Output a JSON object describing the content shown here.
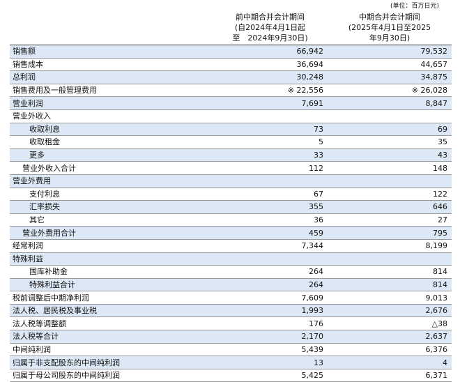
{
  "unit": "(单位：百万日元)",
  "header": {
    "prev": [
      "前中期合并会计期间",
      "(自2024年4月1日起",
      "至　2024年9月30日)"
    ],
    "curr": [
      "中期合并会计期间",
      "(2025年4月1日至2025",
      "年9月30日)"
    ]
  },
  "table": {
    "rows": [
      [
        "销售额",
        "66,942",
        "79,532"
      ],
      [
        "销售成本",
        "36,694",
        "44,657"
      ],
      [
        "总利润",
        "30,248",
        "34,875"
      ],
      [
        "销售费用及一般管理费用",
        "※ 22,556",
        "※ 26,028"
      ],
      [
        "营业利润",
        "7,691",
        "8,847"
      ],
      [
        "营业外收入",
        "",
        ""
      ],
      [
        "收取利息",
        "73",
        "69"
      ],
      [
        "收取租金",
        "5",
        "35"
      ],
      [
        "更多",
        "33",
        "43"
      ],
      [
        "营业外收入合计",
        "112",
        "148"
      ],
      [
        "营业外费用",
        "",
        ""
      ],
      [
        "支付利息",
        "67",
        "122"
      ],
      [
        "汇率损失",
        "355",
        "646"
      ],
      [
        "其它",
        "36",
        "27"
      ],
      [
        "营业外费用合计",
        "459",
        "795"
      ],
      [
        "经常利润",
        "7,344",
        "8,199"
      ],
      [
        "特殊利益",
        "",
        ""
      ],
      [
        "国库补助金",
        "264",
        "814"
      ],
      [
        "特殊利益合计",
        "264",
        "814"
      ],
      [
        "税前调整后中期净利润",
        "7,609",
        "9,013"
      ],
      [
        "法人税、居民税及事业税",
        "1,993",
        "2,676"
      ],
      [
        "法人税等调整额",
        "176",
        "△38"
      ],
      [
        "法人税等合计",
        "2,170",
        "2,637"
      ],
      [
        "中间纯利润",
        "5,439",
        "6,376"
      ],
      [
        "归属于非支配股东的中间纯利润",
        "13",
        "4"
      ],
      [
        "归属于母公司股东的中间纯利润",
        "5,425",
        "6,371"
      ]
    ]
  }
}
